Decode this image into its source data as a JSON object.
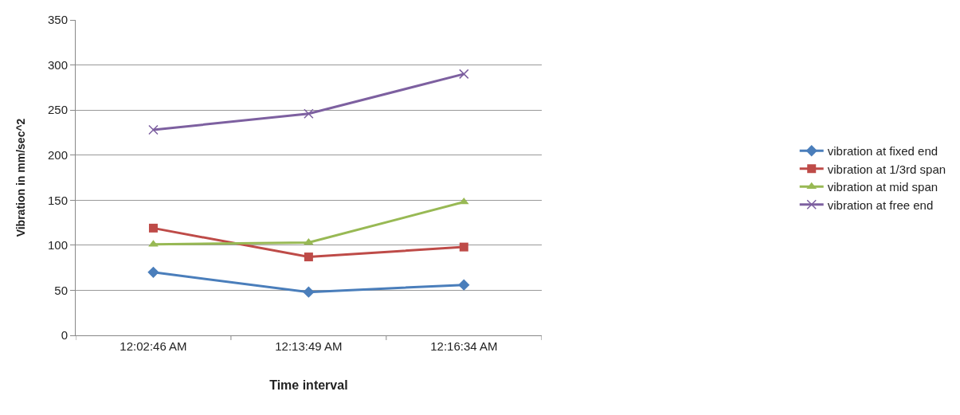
{
  "chart_data": {
    "type": "line",
    "xlabel": "Time interval",
    "ylabel": "Vibration in mm/sec^2",
    "categories": [
      "12:02:46 AM",
      "12:13:49 AM",
      "12:16:34 AM"
    ],
    "series": [
      {
        "name": "vibration at fixed end",
        "color": "#4a7ebb",
        "marker": "diamond",
        "values": [
          70,
          48,
          56
        ]
      },
      {
        "name": "vibration at 1/3rd span",
        "color": "#be4b48",
        "marker": "square",
        "values": [
          119,
          87,
          98
        ]
      },
      {
        "name": "vibration at mid span",
        "color": "#98b954",
        "marker": "triangle",
        "values": [
          101,
          103,
          148
        ]
      },
      {
        "name": "vibration at free end",
        "color": "#7d60a0",
        "marker": "cross",
        "values": [
          228,
          246,
          290
        ]
      }
    ],
    "ylim": [
      0,
      350
    ],
    "yticks": [
      0,
      50,
      100,
      150,
      200,
      250,
      300,
      350
    ],
    "grid": "y",
    "legend": "right",
    "line_style": "solid"
  }
}
